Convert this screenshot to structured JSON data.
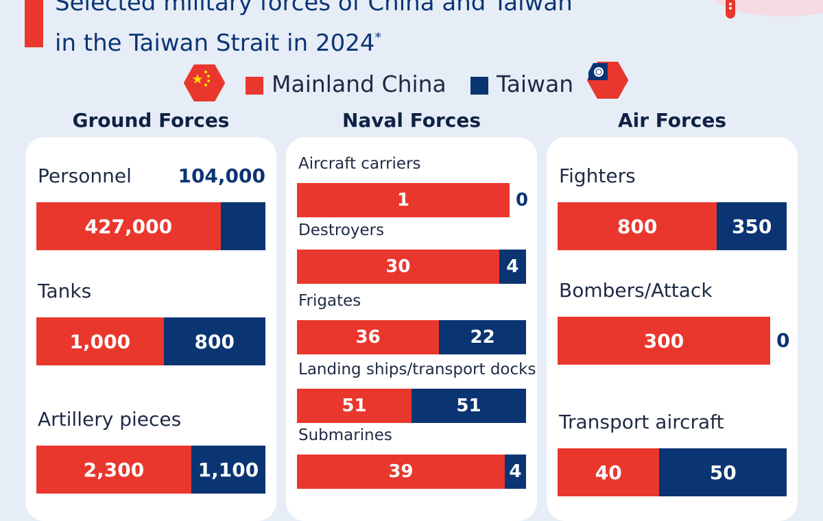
{
  "title": {
    "line1": "Selected military forces of China and Taiwan",
    "line2": "in the Taiwan Strait in 2024",
    "footnote_marker": "*"
  },
  "legend": {
    "items": [
      {
        "label": "Mainland China",
        "color": "#e9372d",
        "icon": "china-flag-icon"
      },
      {
        "label": "Taiwan",
        "color": "#0b3473",
        "icon": "taiwan-flag-icon"
      }
    ]
  },
  "chart_data": {
    "type": "bar",
    "stacked": true,
    "orientation": "horizontal",
    "series_names": [
      "Mainland China",
      "Taiwan"
    ],
    "colors": {
      "Mainland China": "#e9372d",
      "Taiwan": "#0b3473"
    },
    "panels": [
      {
        "title": "Ground Forces",
        "metrics": [
          {
            "label": "Personnel",
            "china": 427000,
            "taiwan": 104000,
            "china_label": "427,000",
            "taiwan_label": "104,000"
          },
          {
            "label": "Tanks",
            "china": 1000,
            "taiwan": 800,
            "china_label": "1,000",
            "taiwan_label": "800"
          },
          {
            "label": "Artillery pieces",
            "china": 2300,
            "taiwan": 1100,
            "china_label": "2,300",
            "taiwan_label": "1,100"
          }
        ]
      },
      {
        "title": "Naval Forces",
        "metrics": [
          {
            "label": "Aircraft carriers",
            "china": 1,
            "taiwan": 0,
            "china_label": "1",
            "taiwan_label": "0"
          },
          {
            "label": "Destroyers",
            "china": 30,
            "taiwan": 4,
            "china_label": "30",
            "taiwan_label": "4"
          },
          {
            "label": "Frigates",
            "china": 36,
            "taiwan": 22,
            "china_label": "36",
            "taiwan_label": "22"
          },
          {
            "label": "Landing ships/transport docks",
            "china": 51,
            "taiwan": 51,
            "china_label": "51",
            "taiwan_label": "51"
          },
          {
            "label": "Submarines",
            "china": 39,
            "taiwan": 4,
            "china_label": "39",
            "taiwan_label": "4"
          }
        ]
      },
      {
        "title": "Air Forces",
        "metrics": [
          {
            "label": "Fighters",
            "china": 800,
            "taiwan": 350,
            "china_label": "800",
            "taiwan_label": "350"
          },
          {
            "label": "Bombers/Attack",
            "china": 300,
            "taiwan": 0,
            "china_label": "300",
            "taiwan_label": "0"
          },
          {
            "label": "Transport aircraft",
            "china": 40,
            "taiwan": 50,
            "china_label": "40",
            "taiwan_label": "50"
          }
        ]
      }
    ]
  }
}
